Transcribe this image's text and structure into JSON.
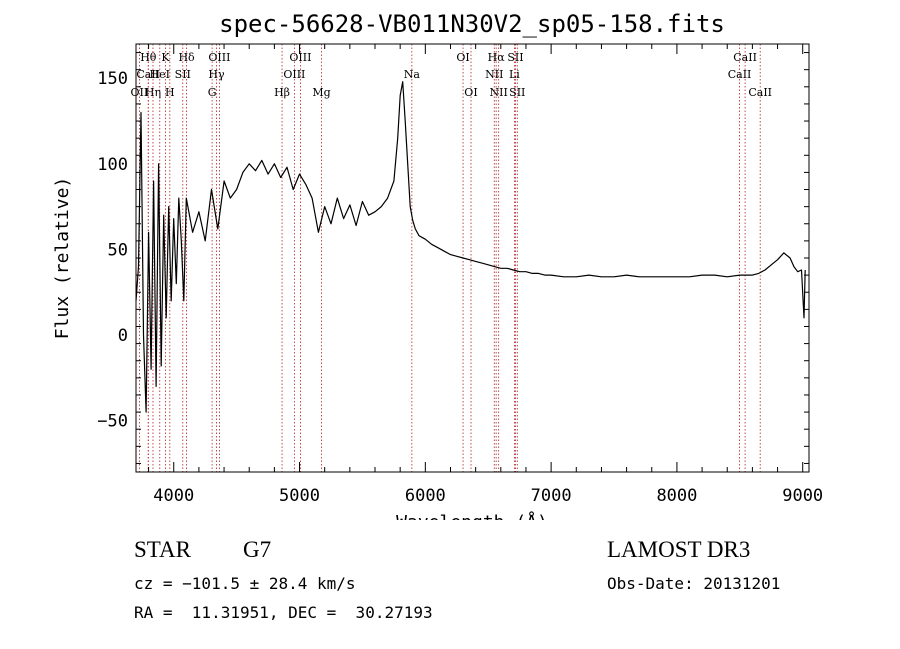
{
  "chart_data": {
    "type": "line",
    "title": "spec-56628-VB011N30V2_sp05-158.fits",
    "xlabel": "Wavelength (Å)",
    "ylabel": "Flux (relative)",
    "xlim": [
      3700,
      9050
    ],
    "ylim": [
      -80,
      170
    ],
    "x_ticks": [
      4000,
      5000,
      6000,
      7000,
      8000,
      9000
    ],
    "x_tick_labels": [
      "4000",
      "5000",
      "6000",
      "7000",
      "8000",
      "9000"
    ],
    "y_ticks": [
      -50,
      0,
      50,
      100,
      150
    ],
    "y_tick_labels": [
      "−50",
      "0",
      "50",
      "100",
      "150"
    ],
    "series": [
      {
        "name": "flux",
        "x": [
          3700,
          3720,
          3740,
          3760,
          3780,
          3800,
          3820,
          3840,
          3860,
          3880,
          3900,
          3920,
          3940,
          3960,
          3980,
          4000,
          4020,
          4040,
          4060,
          4080,
          4100,
          4150,
          4200,
          4250,
          4300,
          4350,
          4400,
          4450,
          4500,
          4550,
          4600,
          4650,
          4700,
          4750,
          4800,
          4850,
          4900,
          4950,
          5000,
          5050,
          5100,
          5150,
          5200,
          5250,
          5300,
          5350,
          5400,
          5450,
          5500,
          5550,
          5600,
          5650,
          5700,
          5750,
          5780,
          5800,
          5820,
          5840,
          5860,
          5880,
          5900,
          5920,
          5950,
          6000,
          6050,
          6100,
          6150,
          6200,
          6250,
          6300,
          6350,
          6400,
          6450,
          6500,
          6550,
          6600,
          6650,
          6700,
          6750,
          6800,
          6850,
          6900,
          6950,
          7000,
          7100,
          7200,
          7300,
          7400,
          7500,
          7600,
          7700,
          7800,
          7900,
          8000,
          8100,
          8200,
          8300,
          8400,
          8500,
          8600,
          8650,
          8700,
          8750,
          8800,
          8850,
          8900,
          8930,
          8960,
          8990,
          9010,
          9020
        ],
        "y": [
          20,
          40,
          130,
          0,
          -45,
          60,
          -20,
          90,
          -30,
          100,
          -18,
          70,
          10,
          75,
          20,
          68,
          30,
          80,
          55,
          20,
          80,
          60,
          72,
          55,
          85,
          62,
          90,
          80,
          85,
          95,
          100,
          96,
          102,
          94,
          100,
          92,
          98,
          85,
          94,
          88,
          80,
          60,
          75,
          65,
          80,
          68,
          76,
          64,
          78,
          70,
          72,
          75,
          80,
          90,
          115,
          140,
          148,
          125,
          100,
          75,
          67,
          62,
          58,
          56,
          53,
          51,
          49,
          47,
          46,
          45,
          44,
          43,
          42,
          41,
          40,
          39,
          39,
          38,
          37,
          37,
          36,
          36,
          35,
          35,
          34,
          34,
          35,
          34,
          34,
          35,
          34,
          34,
          34,
          34,
          34,
          35,
          35,
          34,
          35,
          35,
          36,
          38,
          41,
          44,
          48,
          45,
          40,
          37,
          38,
          10,
          38
        ]
      }
    ],
    "lines": [
      {
        "name": "Hθ",
        "x": 3798,
        "row": 1
      },
      {
        "name": "CaII",
        "x": 3797,
        "row": 2
      },
      {
        "name": "OII",
        "x": 3727,
        "row": 3
      },
      {
        "name": "Hη",
        "x": 3835,
        "row": 3
      },
      {
        "name": "K",
        "x": 3934,
        "row": 1
      },
      {
        "name": "HeI",
        "x": 3889,
        "row": 2
      },
      {
        "name": "H",
        "x": 3969,
        "row": 3
      },
      {
        "name": "Hδ",
        "x": 4102,
        "row": 1
      },
      {
        "name": "SII",
        "x": 4072,
        "row": 2
      },
      {
        "name": "OIII",
        "x": 4363,
        "row": 1
      },
      {
        "name": "Hγ",
        "x": 4340,
        "row": 2
      },
      {
        "name": "G",
        "x": 4305,
        "row": 3
      },
      {
        "name": "Hβ",
        "x": 4861,
        "row": 3
      },
      {
        "name": "OIII",
        "x": 5007,
        "row": 1
      },
      {
        "name": "OIII",
        "x": 4959,
        "row": 2
      },
      {
        "name": "Mg",
        "x": 5175,
        "row": 3
      },
      {
        "name": "Na",
        "x": 5893,
        "row": 2
      },
      {
        "name": "OI",
        "x": 6300,
        "row": 1
      },
      {
        "name": "OI",
        "x": 6363,
        "row": 3
      },
      {
        "name": "Hα",
        "x": 6563,
        "row": 1
      },
      {
        "name": "NII",
        "x": 6548,
        "row": 2
      },
      {
        "name": "NII",
        "x": 6583,
        "row": 3
      },
      {
        "name": "SII",
        "x": 6717,
        "row": 1
      },
      {
        "name": "Li",
        "x": 6708,
        "row": 2
      },
      {
        "name": "SII",
        "x": 6731,
        "row": 3
      },
      {
        "name": "CaII",
        "x": 8542,
        "row": 1
      },
      {
        "name": "CaII",
        "x": 8498,
        "row": 2
      },
      {
        "name": "CaII",
        "x": 8662,
        "row": 3
      }
    ]
  },
  "info": {
    "object_class": "STAR",
    "subclass": "G7",
    "cz": "cz = −101.5 ± 28.4 km/s",
    "coords": "RA =  11.31951, DEC =  30.27193",
    "survey": "LAMOST DR3",
    "obs_date": "Obs-Date: 20131201"
  }
}
